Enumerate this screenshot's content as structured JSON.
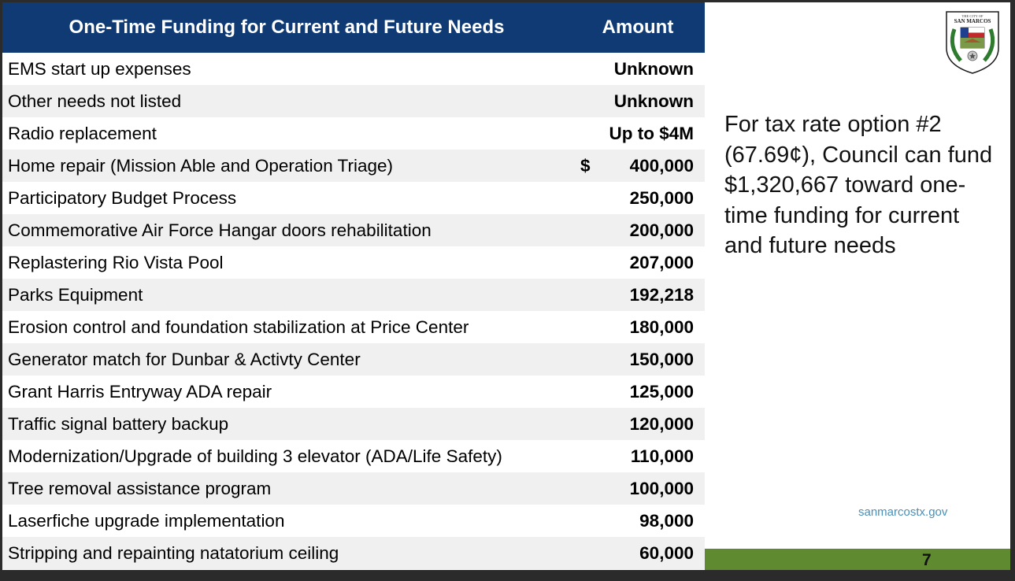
{
  "table": {
    "header_item": "One-Time Funding for Current and Future Needs",
    "header_amount": "Amount",
    "rows": [
      {
        "item": "EMS start up expenses",
        "dollar": "",
        "amount": "Unknown"
      },
      {
        "item": "Other needs not listed",
        "dollar": "",
        "amount": "Unknown"
      },
      {
        "item": "Radio replacement",
        "dollar": "",
        "amount": "Up to $4M"
      },
      {
        "item": "Home repair (Mission Able and Operation Triage)",
        "dollar": "$",
        "amount": "400,000"
      },
      {
        "item": "Participatory Budget Process",
        "dollar": "",
        "amount": "250,000"
      },
      {
        "item": "Commemorative Air Force Hangar doors rehabilitation",
        "dollar": "",
        "amount": "200,000"
      },
      {
        "item": "Replastering Rio Vista Pool",
        "dollar": "",
        "amount": "207,000"
      },
      {
        "item": "Parks Equipment",
        "dollar": "",
        "amount": "192,218"
      },
      {
        "item": "Erosion control and foundation stabilization at Price Center",
        "dollar": "",
        "amount": "180,000"
      },
      {
        "item": "Generator match for Dunbar & Activty Center",
        "dollar": "",
        "amount": "150,000"
      },
      {
        "item": "Grant Harris Entryway ADA repair",
        "dollar": "",
        "amount": "125,000"
      },
      {
        "item": "Traffic signal battery backup",
        "dollar": "",
        "amount": "120,000"
      },
      {
        "item": "Modernization/Upgrade of building 3 elevator (ADA/Life Safety)",
        "dollar": "",
        "amount": "110,000"
      },
      {
        "item": "Tree removal assistance program",
        "dollar": "",
        "amount": "100,000"
      },
      {
        "item": "Laserfiche upgrade implementation",
        "dollar": "",
        "amount": "98,000"
      },
      {
        "item": "Stripping and repainting natatorium ceiling",
        "dollar": "",
        "amount": "60,000"
      }
    ]
  },
  "logo": {
    "top_text": "THE CITY OF",
    "name_text": "SAN MARCOS",
    "icon": "city-seal-icon"
  },
  "callout": "For tax rate option #2 (67.69¢), Council can fund $1,320,667 toward one-time funding for current and future needs",
  "website": "sanmarcostx.gov",
  "page_number": "7",
  "colors": {
    "header_bg": "#0f3a74",
    "row_alt_bg": "#f0f0f0",
    "footer_green": "#5f8a30",
    "link_blue": "#4b8fb5"
  }
}
